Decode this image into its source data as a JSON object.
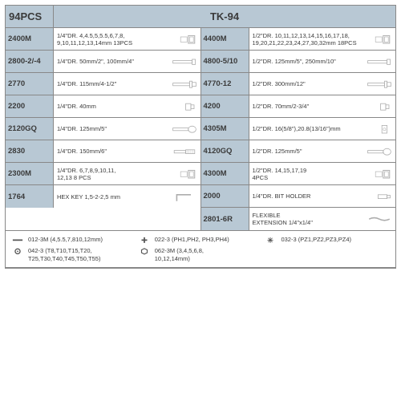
{
  "header": {
    "left": "94PCS",
    "right": "TK-94"
  },
  "colors": {
    "header_bg": "#b8c8d4",
    "border": "#888888",
    "text": "#3a3a3a",
    "background": "#ffffff"
  },
  "left_rows": [
    {
      "code": "2400M",
      "desc": "1/4\"DR. 4,4.5,5,5.5,6,7,8,\n9,10,11,12,13,14mm 13PCS",
      "icon": "socket"
    },
    {
      "code": "2800-2/-4",
      "desc": "1/4\"DR. 50mm/2\", 100mm/4\"",
      "icon": "ext-bar"
    },
    {
      "code": "2770",
      "desc": "1/4\"DR. 115mm/4-1/2\"",
      "icon": "handle"
    },
    {
      "code": "2200",
      "desc": "1/4\"DR. 40mm",
      "icon": "adapter"
    },
    {
      "code": "2120GQ",
      "desc": "1/4\"DR. 125mm/5\"",
      "icon": "ratchet"
    },
    {
      "code": "2830",
      "desc": "1/4\"DR. 150mm/6\"",
      "icon": "spinner"
    },
    {
      "code": "2300M",
      "desc": "1/4\"DR. 6,7,8,9,10,11,\n12,13 8 PCS",
      "icon": "socket"
    },
    {
      "code": "1764",
      "desc": "HEX KEY 1,5-2-2,5 mm",
      "icon": "hexkey"
    }
  ],
  "right_rows": [
    {
      "code": "4400M",
      "desc": "1/2\"DR. 10,11,12,13,14,15,16,17,18,\n19,20,21,22,23,24,27,30,32mm 18PCS",
      "icon": "socket"
    },
    {
      "code": "4800-5/10",
      "desc": "1/2\"DR. 125mm/5\", 250mm/10\"",
      "icon": "ext-bar"
    },
    {
      "code": "4770-12",
      "desc": "1/2\"DR. 300mm/12\"",
      "icon": "handle"
    },
    {
      "code": "4200",
      "desc": "1/2\"DR. 70mm/2-3/4\"",
      "icon": "adapter"
    },
    {
      "code": "4305M",
      "desc": "1/2\"DR. 16(5/8\"),20.8(13/16\")mm",
      "icon": "sparkplug"
    },
    {
      "code": "4120GQ",
      "desc": "1/2\"DR. 125mm/5\"",
      "icon": "ratchet"
    },
    {
      "code": "4300M",
      "desc": "1/2\"DR. 14,15,17,19\n4PCS",
      "icon": "socket"
    },
    {
      "code": "2000",
      "desc": "1/4\"DR. BIT HOLDER",
      "icon": "bitholder"
    },
    {
      "code": "2801-6R",
      "desc": "FLEXIBLE\nEXTENSION 1/4\"x1/4\"",
      "icon": "flexext"
    }
  ],
  "footer": [
    {
      "icon": "slot",
      "text": "012-3M (4,5.5,7,810,12mm)"
    },
    {
      "icon": "phillips",
      "text": "022-3 (PH1,PH2, PH3,PH4)"
    },
    {
      "icon": "pozi",
      "text": "032-3 (PZ1,PZ2,PZ3,PZ4)"
    },
    {
      "icon": "torx",
      "text": "042-3 (T8,T10,T15,T20,\nT25,T30,T40,T45,T50,T55)"
    },
    {
      "icon": "hex",
      "text": "062-3M (3,4,5,6,8,\n10,12,14mm)"
    }
  ]
}
